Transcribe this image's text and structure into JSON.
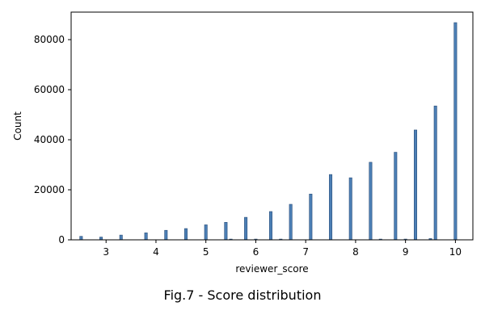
{
  "caption": "Fig.7 - Score distribution",
  "chart_data": {
    "type": "bar",
    "title": "",
    "xlabel": "reviewer_score",
    "ylabel": "Count",
    "xlim": [
      2.3,
      10.35
    ],
    "ylim": [
      0,
      91000
    ],
    "xticks": [
      3,
      4,
      5,
      6,
      7,
      8,
      9,
      10
    ],
    "yticks": [
      0,
      20000,
      40000,
      60000,
      80000
    ],
    "bin_width": 0.055,
    "grid": false,
    "bar_color": "#4c7fb5",
    "bar_edge_color": "#2b4f7a",
    "x": [
      2.5,
      2.9,
      3.3,
      3.8,
      4.2,
      4.6,
      5.0,
      5.4,
      5.5,
      5.8,
      6.0,
      6.3,
      6.5,
      6.7,
      7.1,
      7.5,
      7.9,
      8.3,
      8.5,
      8.8,
      9.0,
      9.2,
      9.5,
      9.6,
      10.0
    ],
    "values": [
      1400,
      1100,
      1900,
      2800,
      3800,
      4500,
      6000,
      7000,
      300,
      9000,
      300,
      11300,
      300,
      14200,
      18300,
      26100,
      24800,
      31000,
      300,
      35000,
      300,
      43900,
      500,
      53500,
      86800
    ]
  }
}
